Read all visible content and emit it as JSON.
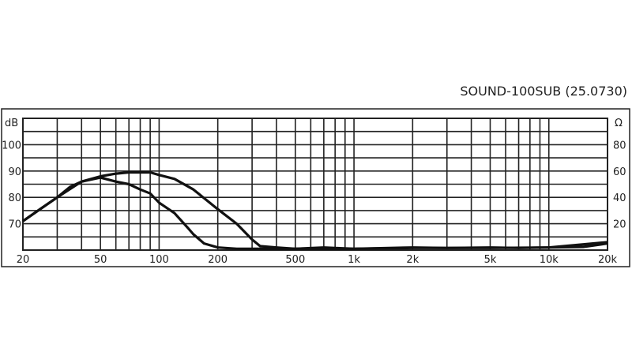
{
  "chart_data": {
    "type": "line",
    "title": "SOUND-100SUB (25.0730)",
    "xscale": "log",
    "xlim": [
      20,
      20000
    ],
    "ylim_left": [
      60,
      110
    ],
    "ylim_right": [
      0,
      100
    ],
    "ylabel_left": "dB",
    "ylabel_right": "Ω",
    "grid": true,
    "x_ticks": [
      {
        "v": 20,
        "label": "20"
      },
      {
        "v": 50,
        "label": "50"
      },
      {
        "v": 100,
        "label": "100"
      },
      {
        "v": 200,
        "label": "200"
      },
      {
        "v": 500,
        "label": "500"
      },
      {
        "v": 1000,
        "label": "1k"
      },
      {
        "v": 2000,
        "label": "2k"
      },
      {
        "v": 5000,
        "label": "5k"
      },
      {
        "v": 10000,
        "label": "10k"
      },
      {
        "v": 20000,
        "label": "20k"
      }
    ],
    "y_ticks_left": [
      {
        "v": 70,
        "label": "70"
      },
      {
        "v": 80,
        "label": "80"
      },
      {
        "v": 90,
        "label": "90"
      },
      {
        "v": 100,
        "label": "100"
      }
    ],
    "y_ticks_right": [
      {
        "v": 20,
        "label": "20"
      },
      {
        "v": 40,
        "label": "40"
      },
      {
        "v": 60,
        "label": "60"
      },
      {
        "v": 80,
        "label": "80"
      }
    ],
    "series": [
      {
        "x": [
          20,
          25,
          30,
          35,
          40,
          50,
          60,
          70,
          80,
          90,
          100,
          120,
          150,
          200,
          250,
          300,
          330,
          400,
          500,
          700,
          1000,
          2000,
          3000,
          5000,
          7000,
          10000,
          15000,
          20000
        ],
        "y": [
          71,
          76,
          80,
          84,
          86,
          88,
          89,
          89.5,
          89.5,
          89.5,
          88.5,
          87,
          83,
          75.5,
          70,
          64,
          61.5,
          61,
          60.5,
          61,
          60.5,
          61,
          60.8,
          61,
          60.8,
          61,
          61.2,
          62.5
        ]
      },
      {
        "x": [
          20,
          30,
          40,
          50,
          60,
          70,
          80,
          90,
          100,
          120,
          140,
          150,
          170,
          200,
          250,
          300,
          400,
          500,
          1000,
          2000,
          5000,
          10000,
          20000
        ],
        "y": [
          71,
          80,
          86,
          87.5,
          86,
          85,
          83,
          81.5,
          78,
          74,
          68.5,
          66,
          62.5,
          61,
          60.5,
          60.5,
          60.5,
          60.5,
          60.5,
          60.8,
          60.8,
          61,
          63
        ]
      }
    ],
    "line_color": "#111111"
  }
}
